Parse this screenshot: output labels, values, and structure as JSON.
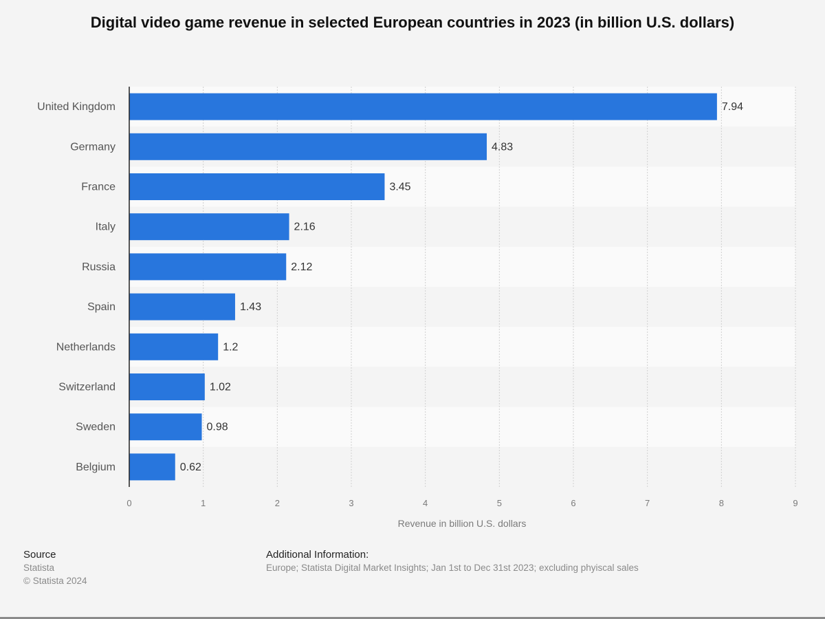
{
  "chart_data": {
    "type": "bar",
    "orientation": "horizontal",
    "title": "Digital video game revenue in selected European countries in 2023 (in billion U.S. dollars)",
    "xlabel": "Revenue in billion U.S. dollars",
    "ylabel": "",
    "categories": [
      "United Kingdom",
      "Germany",
      "France",
      "Italy",
      "Russia",
      "Spain",
      "Netherlands",
      "Switzerland",
      "Sweden",
      "Belgium"
    ],
    "values": [
      7.94,
      4.83,
      3.45,
      2.16,
      2.12,
      1.43,
      1.2,
      1.02,
      0.98,
      0.62
    ],
    "value_labels": [
      "7.94",
      "4.83",
      "3.45",
      "2.16",
      "2.12",
      "1.43",
      "1.2",
      "1.02",
      "0.98",
      "0.62"
    ],
    "xlim": [
      0,
      9
    ],
    "xticks": [
      "0",
      "1",
      "2",
      "3",
      "4",
      "5",
      "6",
      "7",
      "8",
      "9"
    ],
    "grid": true,
    "bar_color": "#2876dd"
  },
  "footer": {
    "source_title": "Source",
    "source_name": "Statista",
    "copyright": "© Statista 2024",
    "info_title": "Additional Information:",
    "info_text": "Europe; Statista Digital Market Insights; Jan 1st to Dec 31st 2023; excluding phyiscal sales"
  }
}
